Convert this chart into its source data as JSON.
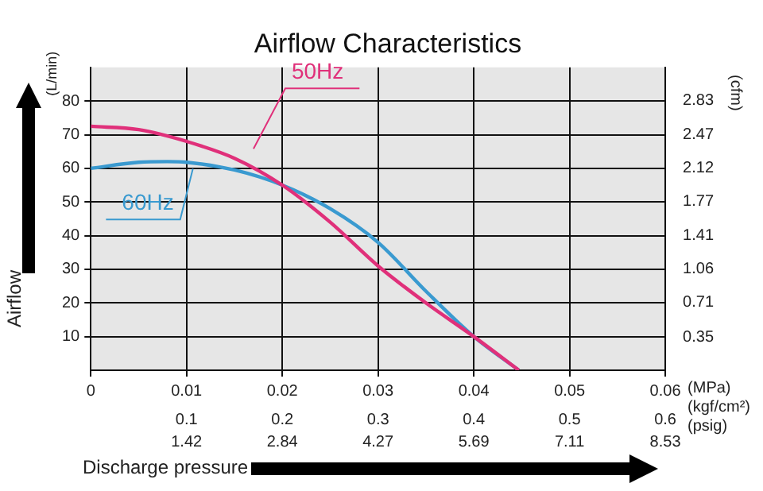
{
  "chart_data": {
    "type": "line",
    "title": "Airflow Characteristics",
    "xlabel": "Discharge pressure",
    "ylabel": "Airflow",
    "y2label": "(cfm)",
    "annotations": [
      "(L/min)",
      "(MPa)",
      "(kgf/cm²)",
      "(psig)",
      "1.42",
      "2.84",
      "4.27",
      "5.69",
      "7.11",
      "8.53"
    ],
    "series": [
      {
        "name": "50Hz",
        "color": "#e0307a",
        "x": [
          0,
          0.005,
          0.01,
          0.015,
          0.02,
          0.025,
          0.03,
          0.035,
          0.04,
          0.0447
        ],
        "values": [
          72.5,
          71.5,
          68,
          63,
          55,
          44,
          31,
          20,
          10,
          0
        ]
      },
      {
        "name": "60Hz",
        "color": "#3a9ad0",
        "x": [
          0,
          0.005,
          0.008,
          0.01,
          0.015,
          0.02,
          0.025,
          0.03,
          0.035,
          0.04,
          0.0447
        ],
        "values": [
          60,
          61.8,
          62,
          61.8,
          59.5,
          55,
          48,
          38,
          23.5,
          10,
          0
        ]
      }
    ],
    "xlim": [
      0,
      0.06
    ],
    "xticks": [
      0,
      0.01,
      0.02,
      0.03,
      0.04,
      0.05,
      0.06
    ],
    "x2lim": [
      0,
      0.6
    ],
    "x2ticks": [
      0.1,
      0.2,
      0.3,
      0.4,
      0.5,
      0.6
    ],
    "ylim": [
      0,
      90
    ],
    "yticks": [
      10,
      20,
      30,
      40,
      50,
      60,
      70,
      80
    ],
    "y2lim": [
      0,
      3.18
    ],
    "y2ticks": [
      0.35,
      0.71,
      1.06,
      1.41,
      1.77,
      2.12,
      2.47,
      2.83
    ],
    "grid": true,
    "legend": false,
    "marker": "none",
    "line_style": "solid"
  }
}
